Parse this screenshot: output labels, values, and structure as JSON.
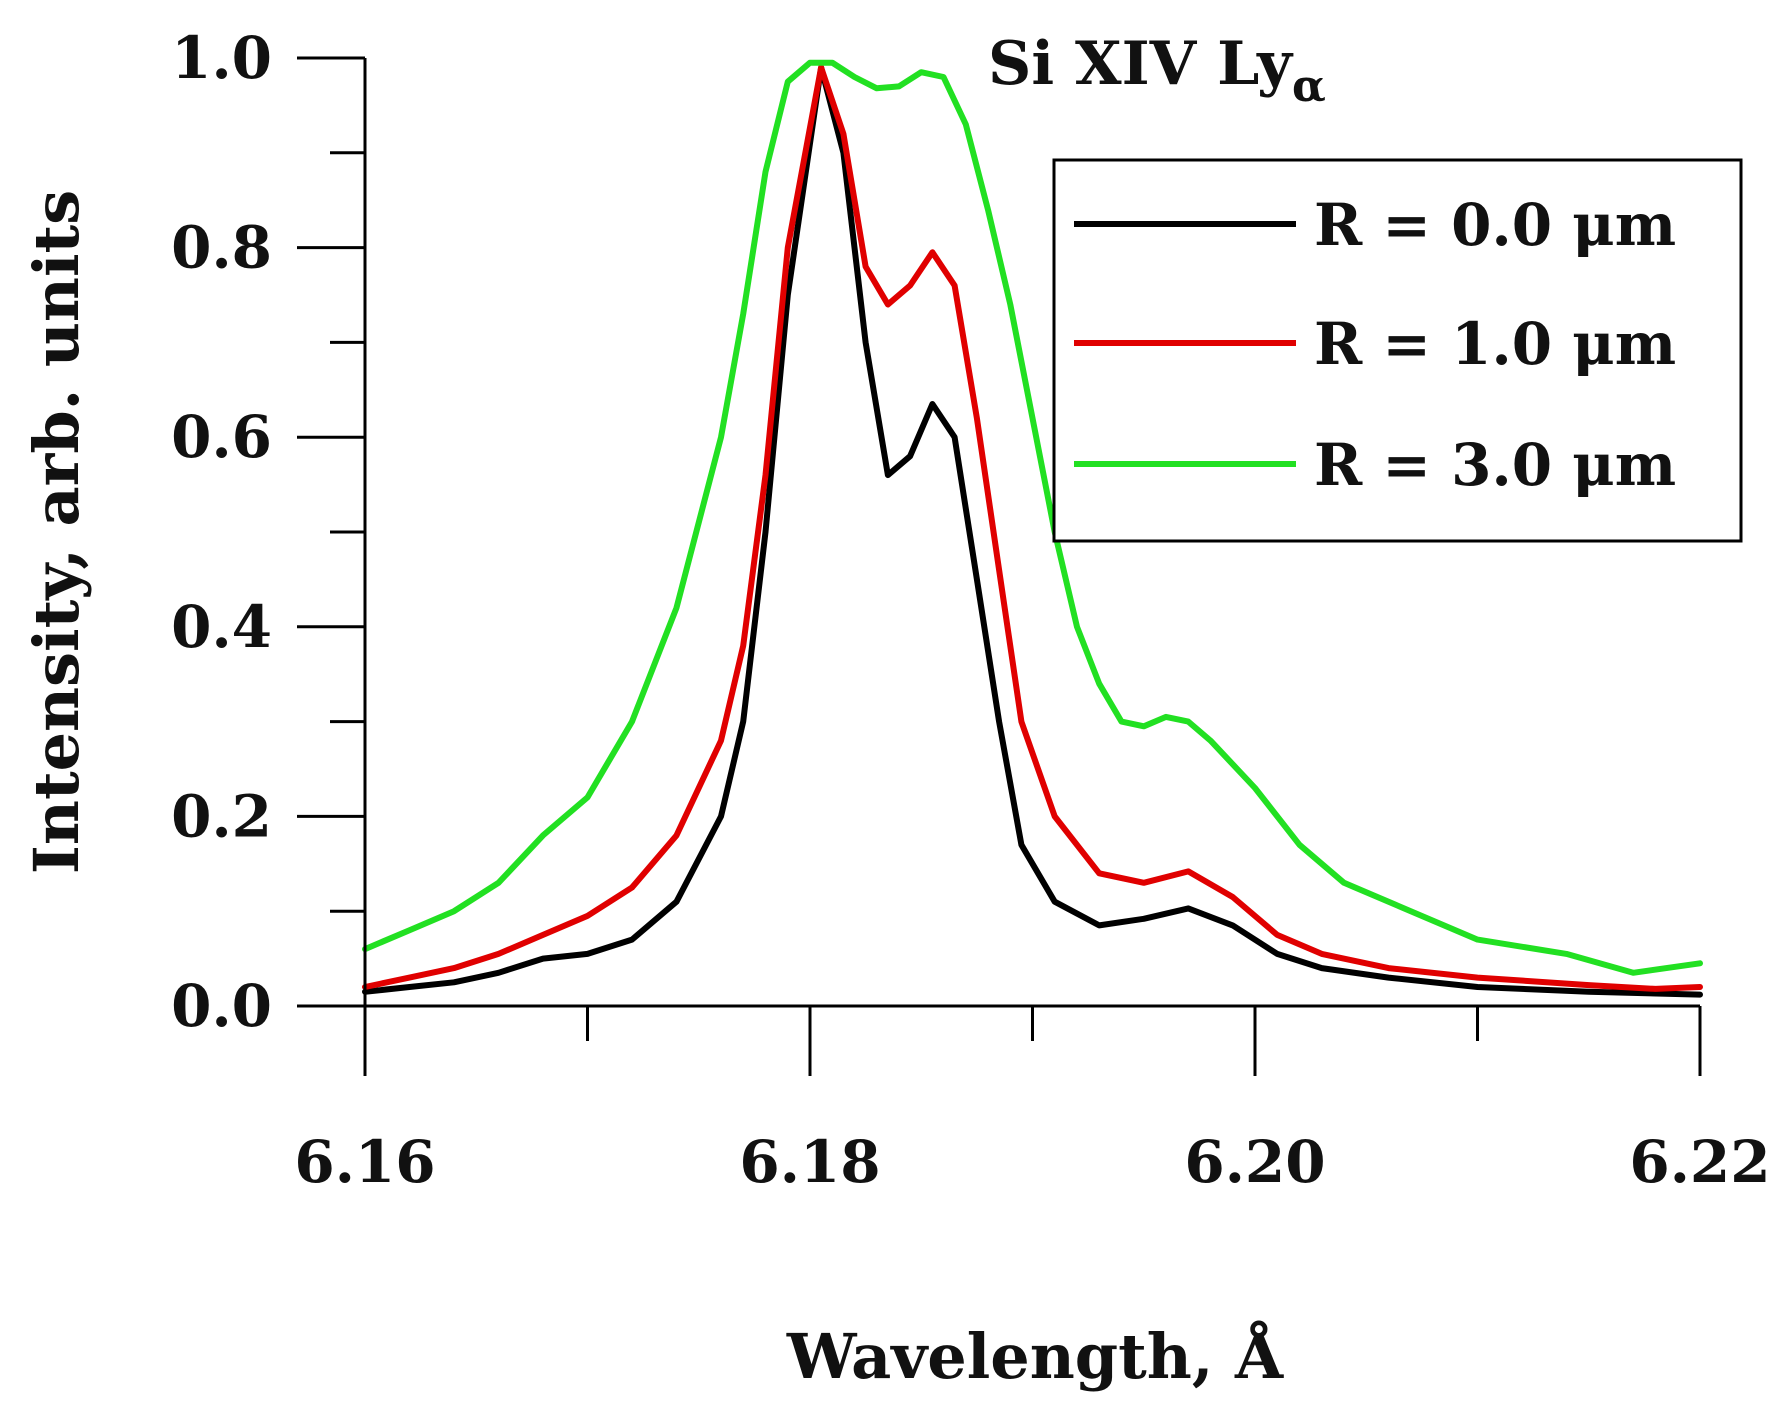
{
  "chart_data": {
    "type": "line",
    "title": "Si XIV Ly",
    "title_subscript": "α",
    "xlabel": "Wavelength, Å",
    "ylabel": "Intensity, arb. units",
    "xlim": [
      6.16,
      6.22
    ],
    "ylim": [
      0.0,
      1.0
    ],
    "x_ticks": [
      {
        "value": 6.16,
        "label": "6.16"
      },
      {
        "value": 6.18,
        "label": "6.18"
      },
      {
        "value": 6.2,
        "label": "6.20"
      },
      {
        "value": 6.22,
        "label": "6.22"
      }
    ],
    "x_minor_ticks": [
      6.17,
      6.19,
      6.21
    ],
    "y_ticks": [
      {
        "value": 0.0,
        "label": "0.0"
      },
      {
        "value": 0.2,
        "label": "0.2"
      },
      {
        "value": 0.4,
        "label": "0.4"
      },
      {
        "value": 0.6,
        "label": "0.6"
      },
      {
        "value": 0.8,
        "label": "0.8"
      },
      {
        "value": 1.0,
        "label": "1.0"
      }
    ],
    "y_minor_ticks": [
      0.1,
      0.3,
      0.5,
      0.7,
      0.9
    ],
    "grid": false,
    "legend_position": "top-right",
    "series": [
      {
        "name": "R = 0.0 μm",
        "color": "#000000",
        "points": [
          [
            6.16,
            0.015
          ],
          [
            6.162,
            0.02
          ],
          [
            6.164,
            0.025
          ],
          [
            6.166,
            0.035
          ],
          [
            6.168,
            0.05
          ],
          [
            6.17,
            0.055
          ],
          [
            6.172,
            0.07
          ],
          [
            6.174,
            0.11
          ],
          [
            6.176,
            0.2
          ],
          [
            6.177,
            0.3
          ],
          [
            6.178,
            0.5
          ],
          [
            6.179,
            0.75
          ],
          [
            6.1805,
            0.99
          ],
          [
            6.1815,
            0.9
          ],
          [
            6.1825,
            0.7
          ],
          [
            6.1835,
            0.56
          ],
          [
            6.1845,
            0.58
          ],
          [
            6.1855,
            0.635
          ],
          [
            6.1865,
            0.6
          ],
          [
            6.1875,
            0.45
          ],
          [
            6.1885,
            0.3
          ],
          [
            6.1895,
            0.17
          ],
          [
            6.191,
            0.11
          ],
          [
            6.193,
            0.085
          ],
          [
            6.195,
            0.092
          ],
          [
            6.197,
            0.103
          ],
          [
            6.199,
            0.085
          ],
          [
            6.201,
            0.055
          ],
          [
            6.203,
            0.04
          ],
          [
            6.206,
            0.03
          ],
          [
            6.21,
            0.02
          ],
          [
            6.215,
            0.015
          ],
          [
            6.22,
            0.012
          ]
        ]
      },
      {
        "name": "R = 1.0 μm",
        "color": "#e00000",
        "points": [
          [
            6.16,
            0.02
          ],
          [
            6.162,
            0.03
          ],
          [
            6.164,
            0.04
          ],
          [
            6.166,
            0.055
          ],
          [
            6.168,
            0.075
          ],
          [
            6.17,
            0.095
          ],
          [
            6.172,
            0.125
          ],
          [
            6.174,
            0.18
          ],
          [
            6.176,
            0.28
          ],
          [
            6.177,
            0.38
          ],
          [
            6.178,
            0.56
          ],
          [
            6.179,
            0.8
          ],
          [
            6.1805,
            0.99
          ],
          [
            6.1815,
            0.92
          ],
          [
            6.1825,
            0.78
          ],
          [
            6.1835,
            0.74
          ],
          [
            6.1845,
            0.76
          ],
          [
            6.1855,
            0.795
          ],
          [
            6.1865,
            0.76
          ],
          [
            6.1875,
            0.62
          ],
          [
            6.1885,
            0.46
          ],
          [
            6.1895,
            0.3
          ],
          [
            6.191,
            0.2
          ],
          [
            6.193,
            0.14
          ],
          [
            6.195,
            0.13
          ],
          [
            6.197,
            0.142
          ],
          [
            6.199,
            0.115
          ],
          [
            6.201,
            0.075
          ],
          [
            6.203,
            0.055
          ],
          [
            6.206,
            0.04
          ],
          [
            6.21,
            0.03
          ],
          [
            6.215,
            0.022
          ],
          [
            6.218,
            0.018
          ],
          [
            6.22,
            0.02
          ]
        ]
      },
      {
        "name": "R = 3.0 μm",
        "color": "#22e022",
        "points": [
          [
            6.16,
            0.06
          ],
          [
            6.162,
            0.08
          ],
          [
            6.164,
            0.1
          ],
          [
            6.166,
            0.13
          ],
          [
            6.168,
            0.18
          ],
          [
            6.17,
            0.22
          ],
          [
            6.172,
            0.3
          ],
          [
            6.174,
            0.42
          ],
          [
            6.176,
            0.6
          ],
          [
            6.177,
            0.73
          ],
          [
            6.178,
            0.88
          ],
          [
            6.179,
            0.975
          ],
          [
            6.18,
            0.995
          ],
          [
            6.181,
            0.995
          ],
          [
            6.182,
            0.98
          ],
          [
            6.183,
            0.968
          ],
          [
            6.184,
            0.97
          ],
          [
            6.185,
            0.985
          ],
          [
            6.186,
            0.98
          ],
          [
            6.187,
            0.93
          ],
          [
            6.188,
            0.84
          ],
          [
            6.189,
            0.74
          ],
          [
            6.19,
            0.62
          ],
          [
            6.191,
            0.5
          ],
          [
            6.192,
            0.4
          ],
          [
            6.193,
            0.34
          ],
          [
            6.194,
            0.3
          ],
          [
            6.195,
            0.295
          ],
          [
            6.196,
            0.305
          ],
          [
            6.197,
            0.3
          ],
          [
            6.198,
            0.28
          ],
          [
            6.2,
            0.23
          ],
          [
            6.202,
            0.17
          ],
          [
            6.204,
            0.13
          ],
          [
            6.207,
            0.1
          ],
          [
            6.21,
            0.07
          ],
          [
            6.214,
            0.055
          ],
          [
            6.217,
            0.035
          ],
          [
            6.22,
            0.045
          ]
        ]
      }
    ]
  }
}
